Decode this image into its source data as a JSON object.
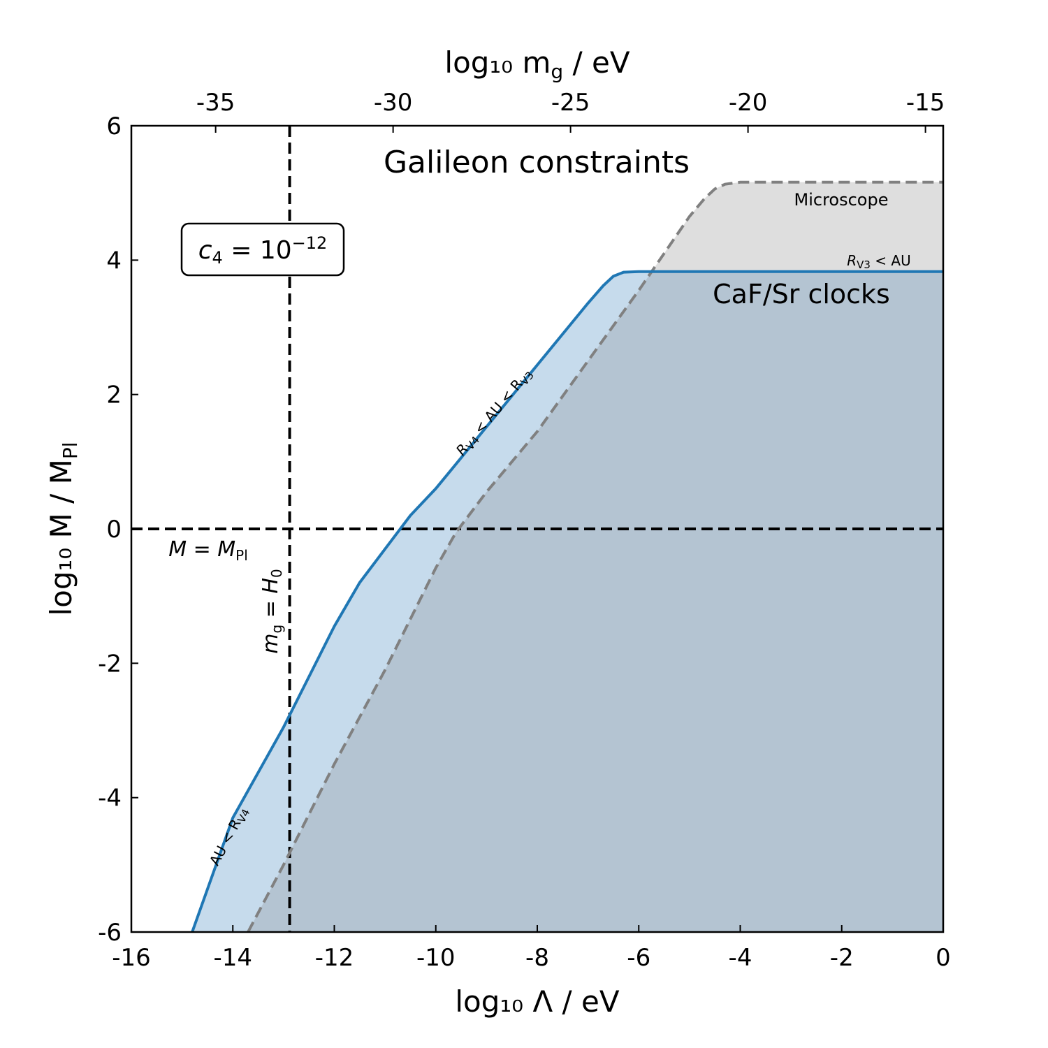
{
  "chart_data": {
    "type": "area",
    "title": "Galileon constraints",
    "xlabel": "log₁₀ Λ / eV",
    "ylabel": "log₁₀ M / M",
    "ylabel_sub": "Pl",
    "x2label": "log₁₀ m",
    "x2label_sub": "g",
    "x2label_unit": " / eV",
    "xlim": [
      -16,
      0
    ],
    "ylim": [
      -6,
      6
    ],
    "x2lim": [
      -37.375,
      -14.5
    ],
    "xticks": [
      -16,
      -14,
      -12,
      -10,
      -8,
      -6,
      -4,
      -2,
      0
    ],
    "xtick_labels": [
      "-16",
      "-14",
      "-12",
      "-10",
      "-8",
      "-6",
      "-4",
      "-2",
      "0"
    ],
    "yticks": [
      -6,
      -4,
      -2,
      0,
      2,
      4,
      6
    ],
    "ytick_labels": [
      "-6",
      "-4",
      "-2",
      "0",
      "2",
      "4",
      "6"
    ],
    "x2ticks": [
      -35,
      -30,
      -25,
      -20,
      -15
    ],
    "x2tick_labels": [
      "-35",
      "-30",
      "-25",
      "-20",
      "-15"
    ],
    "series": [
      {
        "name": "CaF/Sr clocks",
        "style": "solid",
        "color": "#1f77b4",
        "fill": "#c6dbec",
        "x": [
          -14.8,
          -14.0,
          -13.0,
          -12.5,
          -12.0,
          -11.5,
          -11.0,
          -10.5,
          -10.0,
          -9.5,
          -9.0,
          -8.5,
          -8.0,
          -7.5,
          -7.0,
          -6.7,
          -6.5,
          -6.3,
          -6.0,
          -5.5,
          -4.0,
          -2.0,
          0.0
        ],
        "y": [
          -6.0,
          -4.3,
          -2.95,
          -2.2,
          -1.45,
          -0.8,
          -0.3,
          0.2,
          0.6,
          1.06,
          1.52,
          1.98,
          2.44,
          2.9,
          3.36,
          3.62,
          3.76,
          3.82,
          3.83,
          3.83,
          3.83,
          3.83,
          3.83
        ]
      },
      {
        "name": "Microscope",
        "style": "dashed",
        "color": "#808080",
        "fill": "#dedede",
        "x": [
          -13.7,
          -13.0,
          -12.0,
          -11.0,
          -10.0,
          -9.6,
          -9.0,
          -8.0,
          -7.0,
          -6.0,
          -5.0,
          -4.7,
          -4.5,
          -4.3,
          -4.0,
          -2.0,
          0.0
        ],
        "y": [
          -6.0,
          -5.0,
          -3.5,
          -2.1,
          -0.58,
          -0.05,
          0.55,
          1.45,
          2.5,
          3.55,
          4.65,
          4.92,
          5.06,
          5.13,
          5.16,
          5.16,
          5.16
        ]
      }
    ],
    "reference_lines": [
      {
        "orientation": "horizontal",
        "value": 0,
        "label": "M = M",
        "label_sub": "Pl"
      },
      {
        "orientation": "vertical",
        "value": -12.88,
        "label": "m",
        "label_sub": "g",
        "label_rest": " = H",
        "label_sub2": "0"
      }
    ],
    "annotations": {
      "box_text": "c",
      "box_sub": "4",
      "box_eq": " = 10",
      "box_sup": "−12",
      "microscope": "Microscope",
      "clocks": "CaF/Sr clocks",
      "rv3_a": "R",
      "rv3_sub": "V3",
      "rv3_b": " < AU",
      "rv4_a": "R",
      "rv4_sub": "V4",
      "rv4_b": " < AU < R",
      "rv4_sub2": "V3",
      "au_a": "AU < R",
      "au_sub": "V4"
    },
    "grid": false,
    "legend": "none",
    "colors": {
      "clock_line": "#1f77b4",
      "clock_fill": "#c6dbec",
      "micro_line": "#808080",
      "micro_fill": "#dedede",
      "overlap_fill": "#b4c4d2"
    }
  }
}
